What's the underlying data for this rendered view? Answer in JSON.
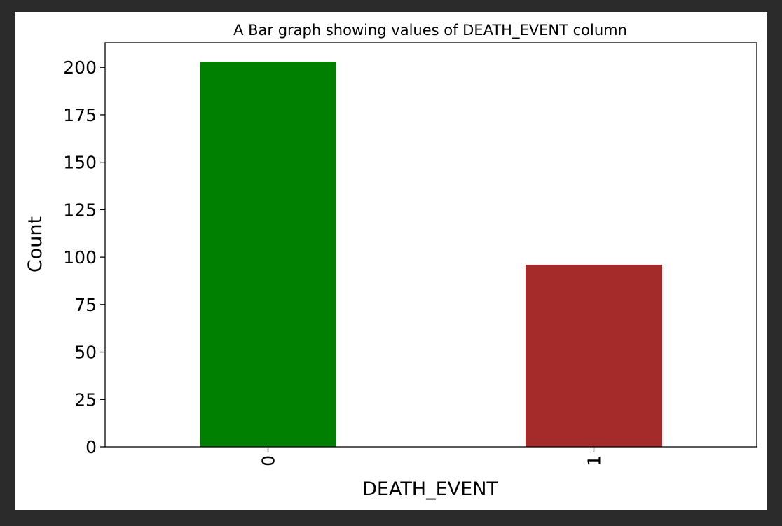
{
  "colors": {
    "page_background": "#2b2b2b",
    "plot_background": "#ffffff",
    "axis": "#000000"
  },
  "chart_data": {
    "type": "bar",
    "title": "A Bar graph showing values of DEATH_EVENT column",
    "xlabel": "DEATH_EVENT",
    "ylabel": "Count",
    "categories": [
      "0",
      "1"
    ],
    "values": [
      203,
      96
    ],
    "bar_colors": [
      "#008000",
      "#a52a2a"
    ],
    "ylim": [
      0,
      213
    ],
    "yticks": [
      0,
      25,
      50,
      75,
      100,
      125,
      150,
      175,
      200
    ],
    "xtick_rotation": "vertical",
    "grid": false,
    "legend": "none"
  }
}
